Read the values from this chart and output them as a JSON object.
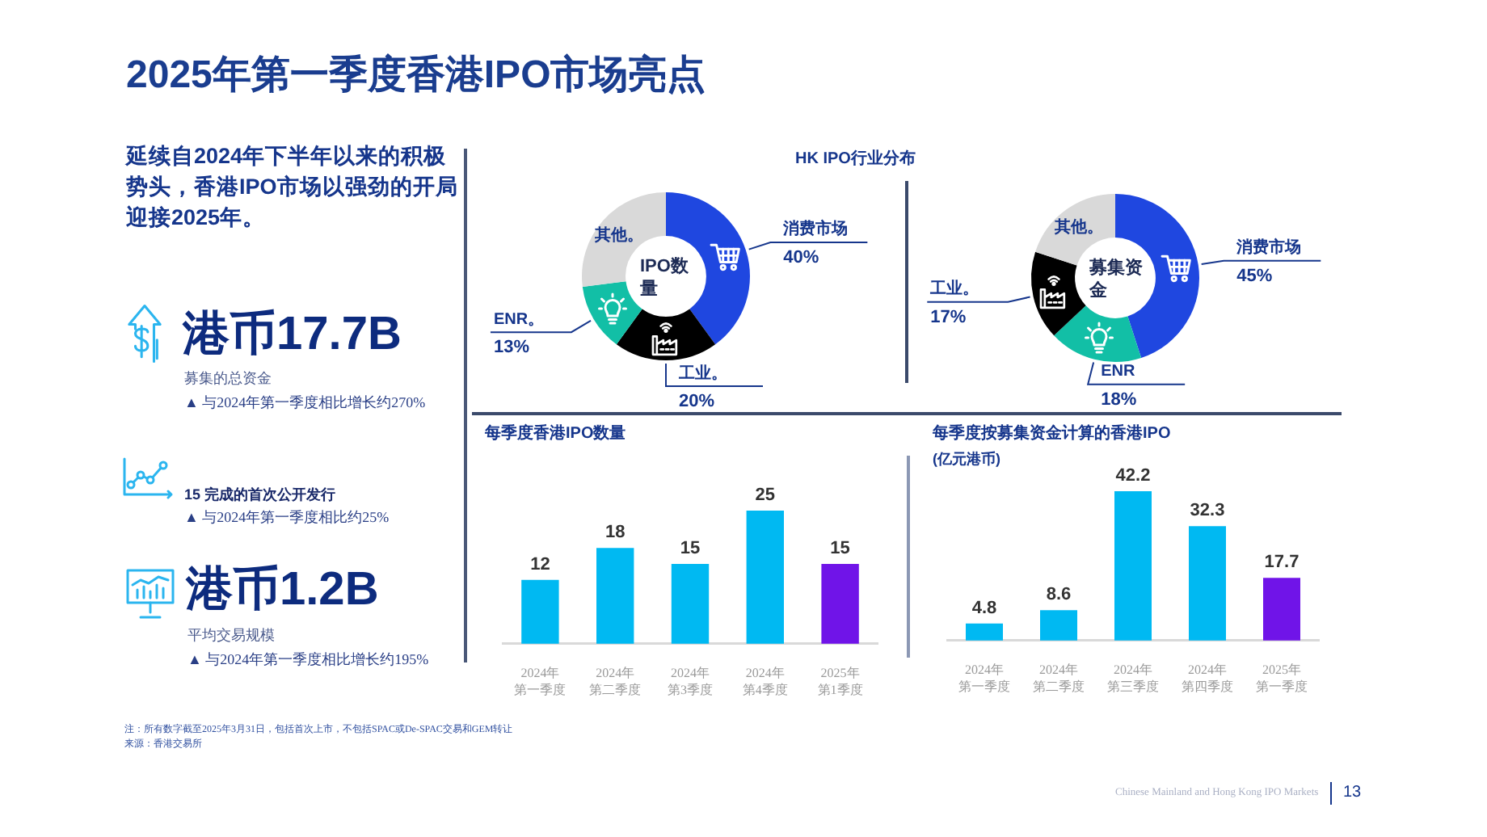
{
  "chart_data": [
    {
      "type": "other",
      "title": "2025年第一季度香港IPO市场亮点",
      "annotations": [
        "延续自2024年下半年以来的积极势头，香港IPO市场以强劲的开局迎接2025年。",
        "港币17.7B",
        "募集的总资金",
        "▲ 与2024年第一季度相比增长约270%",
        "15 完成的首次公开发行",
        "▲ 与2024年第一季度相比约25%",
        "港币1.2B",
        "平均交易规模",
        "▲ 与2024年第一季度相比增长约195%",
        "注：所有数字截至2025年3月31日，包括首次上市，不包括SPAC或De-SPAC交易和GEM转让",
        "来源：香港交易所",
        "Chinese Mainland and Hong Kong IPO Markets",
        "13"
      ]
    },
    {
      "type": "donut",
      "title": "HK IPO行业分布",
      "subtitle": "IPO数量",
      "categories": [
        "消费市场",
        "工业。",
        "ENR。",
        "其他。"
      ],
      "values": [
        40,
        20,
        13,
        27
      ],
      "colors": [
        "#1f47e0",
        "#000000",
        "#12bfa6",
        "#d9d9d9"
      ],
      "value_labels": [
        "40%",
        "20%",
        "13%",
        null
      ]
    },
    {
      "type": "donut",
      "subtitle": "募集资金",
      "categories": [
        "消费市场",
        "ENR",
        "工业。",
        "其他。"
      ],
      "values": [
        45,
        18,
        17,
        20
      ],
      "colors": [
        "#1f47e0",
        "#12bfa6",
        "#000000",
        "#d9d9d9"
      ],
      "value_labels": [
        "45%",
        "18%",
        "17%",
        null
      ]
    },
    {
      "type": "bar",
      "title": "每季度香港IPO数量",
      "categories": [
        "2024年第一季度",
        "2024年第二季度",
        "2024年第3季度",
        "2024年第4季度",
        "2025年第1季度"
      ],
      "values": [
        12,
        18,
        15,
        25,
        15
      ],
      "colors": [
        "#00b9f2",
        "#00b9f2",
        "#00b9f2",
        "#00b9f2",
        "#7014e8"
      ],
      "data_labels": true
    },
    {
      "type": "bar",
      "title": "每季度按募集资金计算的香港IPO",
      "subtitle": "(亿元港币)",
      "categories": [
        "2024年第一季度",
        "2024年第二季度",
        "2024年第三季度",
        "2024年第四季度",
        "2025年第一季度"
      ],
      "values": [
        4.8,
        8.6,
        42.2,
        32.3,
        17.7
      ],
      "colors": [
        "#00b9f2",
        "#00b9f2",
        "#00b9f2",
        "#00b9f2",
        "#7014e8"
      ],
      "data_labels": true
    }
  ]
}
